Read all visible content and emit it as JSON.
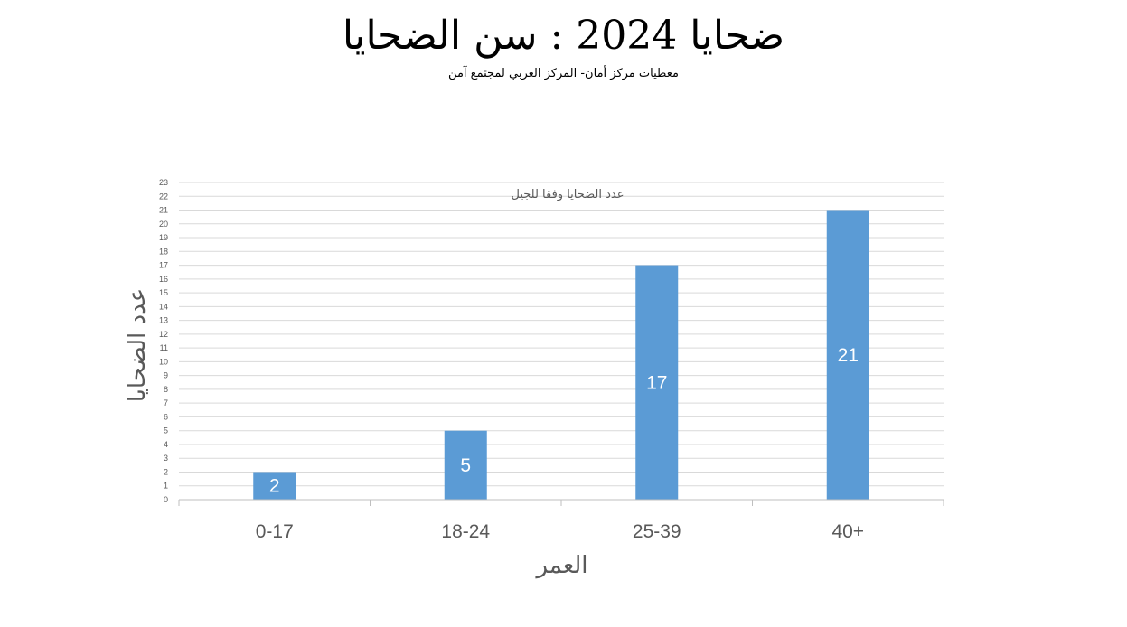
{
  "page": {
    "title": "ضحايا 2024 : سن الضحايا",
    "subtitle": "معطيات مركز أمان- المركز العربي لمجتمع آمن"
  },
  "chart_data": {
    "type": "bar",
    "title": "عدد الضحايا وفقا للجيل",
    "categories": [
      "0-17",
      "18-24",
      "25-39",
      "40+"
    ],
    "series": [
      {
        "values": [
          2,
          5,
          17,
          21
        ]
      }
    ],
    "data_labels": [
      "2",
      "5",
      "17",
      "21"
    ],
    "xlabel": "العمر",
    "ylabel": "عدد الضحايا",
    "ylim": [
      0,
      23
    ],
    "yticks": [
      0,
      1,
      2,
      3,
      4,
      5,
      6,
      7,
      8,
      9,
      10,
      11,
      12,
      13,
      14,
      15,
      16,
      17,
      18,
      19,
      20,
      21,
      22,
      23
    ],
    "grid": true,
    "legend": "none",
    "colors": {
      "bar": "#5B9BD5",
      "grid": "#D9D9D9",
      "axis": "#BFBFBF",
      "text": "#595959"
    }
  }
}
